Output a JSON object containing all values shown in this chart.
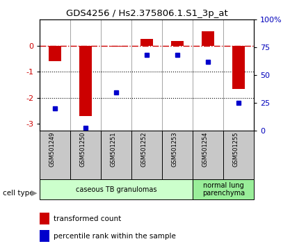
{
  "title": "GDS4256 / Hs2.375806.1.S1_3p_at",
  "samples": [
    "GSM501249",
    "GSM501250",
    "GSM501251",
    "GSM501252",
    "GSM501253",
    "GSM501254",
    "GSM501255"
  ],
  "red_values": [
    -0.6,
    -2.7,
    -0.02,
    0.27,
    0.18,
    0.55,
    -1.65
  ],
  "blue_percentiles": [
    20,
    2,
    34,
    68,
    68,
    62,
    25
  ],
  "ylim": [
    -3.25,
    1.0
  ],
  "left_yticks": [
    0,
    -1,
    -2,
    -3
  ],
  "left_yticklabels": [
    "0",
    "-1",
    "-2",
    "-3"
  ],
  "right_yticks": [
    0,
    25,
    50,
    75,
    100
  ],
  "right_yticklabels": [
    "0",
    "25",
    "50",
    "75",
    "100%"
  ],
  "dotted_lines": [
    -1.0,
    -2.0
  ],
  "red_color": "#cc0000",
  "blue_color": "#0000cc",
  "dashed_color": "#cc0000",
  "bar_width": 0.4,
  "cell_groups": [
    {
      "label": "caseous TB granulomas",
      "indices": [
        0,
        1,
        2,
        3,
        4
      ],
      "color": "#ccffcc"
    },
    {
      "label": "normal lung\nparenchyma",
      "indices": [
        5,
        6
      ],
      "color": "#99ee99"
    }
  ],
  "legend_red": "transformed count",
  "legend_blue": "percentile rank within the sample",
  "cell_type_label": "cell type",
  "sample_box_color": "#c8c8c8",
  "axis_color_left": "#cc0000",
  "axis_color_right": "#0000bb"
}
